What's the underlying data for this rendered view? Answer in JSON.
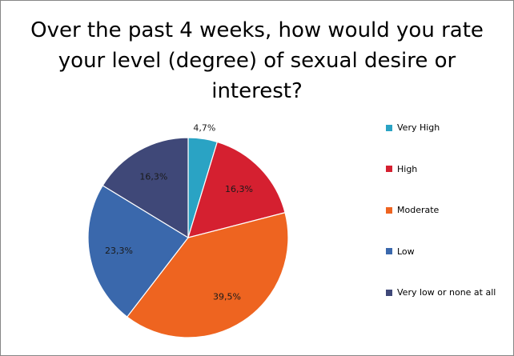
{
  "chart_data": {
    "type": "pie",
    "title_lines": [
      "Over the past 4 weeks, how would you rate",
      "your level (degree) of sexual desire or",
      "interest?"
    ],
    "categories": [
      "Very High",
      "High",
      "Moderate",
      "Low",
      "Very low or none at all"
    ],
    "values": [
      4.7,
      16.3,
      39.5,
      23.3,
      16.3
    ],
    "data_labels": [
      "4,7%",
      "16,3%",
      "39,5%",
      "23,3%",
      "16,3%"
    ],
    "colors": [
      "#2aa3c4",
      "#d52030",
      "#ee6420",
      "#3a68ac",
      "#3f4878"
    ],
    "legend_position": "right",
    "start_angle": "12 o'clock",
    "direction": "clockwise"
  }
}
